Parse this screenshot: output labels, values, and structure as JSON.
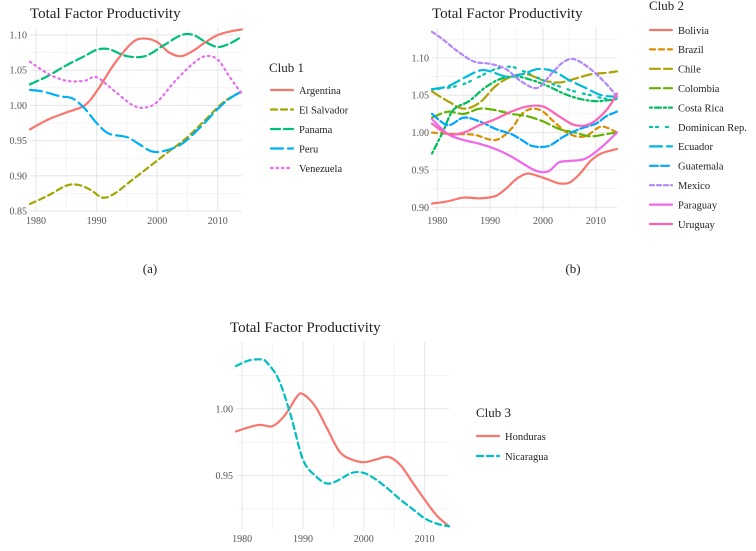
{
  "chart_data": [
    {
      "type": "line",
      "title": "Total Factor Productivity",
      "caption": "(a)",
      "legend_title": "Club 1",
      "legend_position": "right",
      "grid": true,
      "xlim": [
        1979,
        2014
      ],
      "ylim": [
        0.85,
        1.11
      ],
      "x_ticks": [
        1980,
        1990,
        2000,
        2010
      ],
      "y_ticks": [
        0.85,
        0.9,
        0.95,
        1.0,
        1.05,
        1.1
      ],
      "y_tick_labels": [
        "0.85",
        "0.90",
        "0.95",
        "1.00",
        "1.05",
        "1.10"
      ],
      "series": [
        {
          "name": "Argentina",
          "color": "#F8766D",
          "dash": "solid",
          "x": [
            1979,
            1982,
            1985,
            1988,
            1990,
            1993,
            1996,
            1998,
            2000,
            2002,
            2004,
            2006,
            2008,
            2010,
            2012,
            2014
          ],
          "y": [
            0.966,
            0.98,
            0.99,
            1.0,
            1.02,
            1.06,
            1.09,
            1.095,
            1.09,
            1.075,
            1.07,
            1.078,
            1.09,
            1.1,
            1.105,
            1.108
          ]
        },
        {
          "name": "El Salvador",
          "color": "#A3A500",
          "dash": "6,4",
          "x": [
            1979,
            1982,
            1985,
            1987,
            1989,
            1991,
            1993,
            1996,
            1999,
            2002,
            2005,
            2008,
            2011,
            2014
          ],
          "y": [
            0.86,
            0.872,
            0.886,
            0.887,
            0.88,
            0.869,
            0.875,
            0.895,
            0.915,
            0.935,
            0.955,
            0.98,
            1.005,
            1.02
          ]
        },
        {
          "name": "Panama",
          "color": "#00BF7D",
          "dash": "9,4",
          "x": [
            1979,
            1982,
            1985,
            1988,
            1990,
            1992,
            1995,
            1998,
            2001,
            2004,
            2006,
            2008,
            2010,
            2012,
            2014
          ],
          "y": [
            1.03,
            1.042,
            1.057,
            1.07,
            1.079,
            1.08,
            1.07,
            1.07,
            1.085,
            1.1,
            1.1,
            1.09,
            1.083,
            1.088,
            1.098
          ]
        },
        {
          "name": "Peru",
          "color": "#00B0F6",
          "dash": "12,5",
          "x": [
            1979,
            1981,
            1984,
            1986,
            1988,
            1990,
            1992,
            1995,
            1997,
            1999,
            2001,
            2004,
            2007,
            2010,
            2012,
            2014
          ],
          "y": [
            1.022,
            1.02,
            1.013,
            1.01,
            0.996,
            0.975,
            0.96,
            0.955,
            0.945,
            0.935,
            0.935,
            0.945,
            0.968,
            0.995,
            1.01,
            1.02
          ]
        },
        {
          "name": "Venezuela",
          "color": "#E76BF3",
          "dash": "1.5,4",
          "x": [
            1979,
            1982,
            1985,
            1988,
            1990,
            1993,
            1996,
            1998,
            2000,
            2003,
            2006,
            2008,
            2010,
            2012,
            2014
          ],
          "y": [
            1.062,
            1.045,
            1.035,
            1.035,
            1.04,
            1.02,
            1.0,
            0.997,
            1.005,
            1.035,
            1.06,
            1.07,
            1.065,
            1.04,
            1.016
          ]
        }
      ]
    },
    {
      "type": "line",
      "title": "Total Factor Productivity",
      "caption": "(b)",
      "legend_title": "Club 2",
      "legend_position": "right",
      "grid": true,
      "xlim": [
        1979,
        2014
      ],
      "ylim": [
        0.895,
        1.14
      ],
      "x_ticks": [
        1980,
        1990,
        2000,
        2010
      ],
      "y_ticks": [
        0.9,
        0.95,
        1.0,
        1.05,
        1.1
      ],
      "y_tick_labels": [
        "0.90",
        "0.95",
        "1.00",
        "1.05",
        "1.10"
      ],
      "series": [
        {
          "name": "Bolivia",
          "color": "#F8766D",
          "dash": "solid",
          "x": [
            1979,
            1982,
            1985,
            1988,
            1991,
            1993,
            1995,
            1997,
            1999,
            2001,
            2003,
            2005,
            2007,
            2009,
            2011,
            2014
          ],
          "y": [
            0.905,
            0.908,
            0.913,
            0.912,
            0.915,
            0.925,
            0.938,
            0.945,
            0.942,
            0.937,
            0.932,
            0.933,
            0.945,
            0.962,
            0.972,
            0.978
          ]
        },
        {
          "name": "Brazil",
          "color": "#DB8E00",
          "dash": "5,4",
          "x": [
            1979,
            1983,
            1987,
            1991,
            1994,
            1996,
            1998,
            2000,
            2002,
            2005,
            2008,
            2011,
            2014
          ],
          "y": [
            1.0,
            0.998,
            0.997,
            0.99,
            1.005,
            1.025,
            1.032,
            1.028,
            1.015,
            0.998,
            0.995,
            1.008,
            1.0
          ]
        },
        {
          "name": "Chile",
          "color": "#AEA200",
          "dash": "10,4",
          "x": [
            1979,
            1982,
            1985,
            1988,
            1991,
            1994,
            1997,
            2000,
            2003,
            2006,
            2009,
            2012,
            2014
          ],
          "y": [
            1.055,
            1.042,
            1.032,
            1.04,
            1.062,
            1.075,
            1.078,
            1.07,
            1.067,
            1.072,
            1.078,
            1.08,
            1.082
          ]
        },
        {
          "name": "Colombia",
          "color": "#64B200",
          "dash": "10,4",
          "x": [
            1979,
            1982,
            1985,
            1988,
            1991,
            1994,
            1997,
            2000,
            2003,
            2006,
            2009,
            2012,
            2014
          ],
          "y": [
            1.02,
            1.028,
            1.025,
            1.032,
            1.03,
            1.025,
            1.022,
            1.015,
            1.005,
            1.0,
            0.995,
            0.998,
            1.0
          ]
        },
        {
          "name": "Costa Rica",
          "color": "#00BD5C",
          "dash": "2,3,6,3",
          "x": [
            1979,
            1981,
            1983,
            1986,
            1989,
            1992,
            1995,
            1998,
            2001,
            2004,
            2007,
            2010,
            2012,
            2014
          ],
          "y": [
            0.972,
            1.0,
            1.03,
            1.042,
            1.06,
            1.072,
            1.075,
            1.07,
            1.062,
            1.052,
            1.045,
            1.042,
            1.043,
            1.045
          ]
        },
        {
          "name": "Dominican Rep.",
          "color": "#00C1A7",
          "dash": "2,4,2,8",
          "x": [
            1979,
            1982,
            1985,
            1988,
            1991,
            1994,
            1997,
            2000,
            2003,
            2006,
            2009,
            2012,
            2014
          ],
          "y": [
            1.058,
            1.06,
            1.065,
            1.075,
            1.085,
            1.088,
            1.08,
            1.07,
            1.062,
            1.055,
            1.05,
            1.045,
            1.045
          ]
        },
        {
          "name": "Ecuador",
          "color": "#00BADE",
          "dash": "12,5",
          "x": [
            1979,
            1982,
            1985,
            1988,
            1990,
            1993,
            1996,
            1999,
            2002,
            2005,
            2008,
            2011,
            2014
          ],
          "y": [
            1.058,
            1.062,
            1.073,
            1.083,
            1.082,
            1.075,
            1.078,
            1.085,
            1.082,
            1.07,
            1.06,
            1.05,
            1.048
          ]
        },
        {
          "name": "Guatemala",
          "color": "#00A6FF",
          "dash": "8,3",
          "x": [
            1979,
            1982,
            1985,
            1988,
            1991,
            1994,
            1996,
            1998,
            2001,
            2004,
            2007,
            2010,
            2012,
            2014
          ],
          "y": [
            1.025,
            1.01,
            1.02,
            1.015,
            1.005,
            0.998,
            0.99,
            0.982,
            0.982,
            0.995,
            1.005,
            1.012,
            1.022,
            1.028
          ]
        },
        {
          "name": "Mexico",
          "color": "#B385FF",
          "dash": "4,3",
          "x": [
            1979,
            1981,
            1984,
            1987,
            1990,
            1993,
            1996,
            1999,
            2002,
            2004,
            2006,
            2009,
            2012,
            2014
          ],
          "y": [
            1.135,
            1.125,
            1.108,
            1.095,
            1.092,
            1.085,
            1.068,
            1.06,
            1.082,
            1.095,
            1.098,
            1.085,
            1.065,
            1.048
          ]
        },
        {
          "name": "Paraguay",
          "color": "#EF67EB",
          "dash": "solid",
          "x": [
            1979,
            1982,
            1985,
            1988,
            1991,
            1994,
            1997,
            1999,
            2001,
            2003,
            2005,
            2008,
            2011,
            2014
          ],
          "y": [
            1.018,
            0.998,
            0.99,
            0.985,
            0.978,
            0.968,
            0.955,
            0.948,
            0.948,
            0.96,
            0.962,
            0.965,
            0.98,
            1.0
          ]
        },
        {
          "name": "Uruguay",
          "color": "#FF63B6",
          "dash": "solid",
          "x": [
            1979,
            1982,
            1985,
            1988,
            1991,
            1994,
            1997,
            2000,
            2003,
            2006,
            2009,
            2012,
            2014
          ],
          "y": [
            1.012,
            0.998,
            1.0,
            1.01,
            1.018,
            1.028,
            1.035,
            1.035,
            1.022,
            1.01,
            1.012,
            1.03,
            1.052
          ]
        }
      ]
    },
    {
      "type": "line",
      "title": "Total Factor Productivity",
      "caption": "",
      "legend_title": "Club 3",
      "legend_position": "right",
      "grid": true,
      "xlim": [
        1979,
        2014
      ],
      "ylim": [
        0.91,
        1.05
      ],
      "x_ticks": [
        1980,
        1990,
        2000,
        2010
      ],
      "y_ticks": [
        0.95,
        1.0
      ],
      "y_tick_labels": [
        "0.95",
        "1.00"
      ],
      "series": [
        {
          "name": "Honduras",
          "color": "#F8766D",
          "dash": "solid",
          "x": [
            1979,
            1981,
            1983,
            1985,
            1987,
            1989,
            1990,
            1992,
            1994,
            1996,
            1998,
            2000,
            2002,
            2004,
            2006,
            2008,
            2010,
            2012,
            2014
          ],
          "y": [
            0.983,
            0.986,
            0.988,
            0.987,
            0.995,
            1.009,
            1.011,
            1.002,
            0.985,
            0.968,
            0.962,
            0.96,
            0.962,
            0.964,
            0.958,
            0.945,
            0.932,
            0.92,
            0.912
          ]
        },
        {
          "name": "Nicaragua",
          "color": "#00BFC4",
          "dash": "6,4",
          "x": [
            1979,
            1981,
            1983,
            1984,
            1986,
            1988,
            1990,
            1992,
            1994,
            1996,
            1998,
            2000,
            2002,
            2004,
            2006,
            2008,
            2010,
            2012,
            2014
          ],
          "y": [
            1.032,
            1.036,
            1.037,
            1.035,
            1.022,
            0.995,
            0.962,
            0.95,
            0.944,
            0.947,
            0.952,
            0.952,
            0.947,
            0.94,
            0.932,
            0.925,
            0.918,
            0.914,
            0.912
          ]
        }
      ]
    }
  ]
}
